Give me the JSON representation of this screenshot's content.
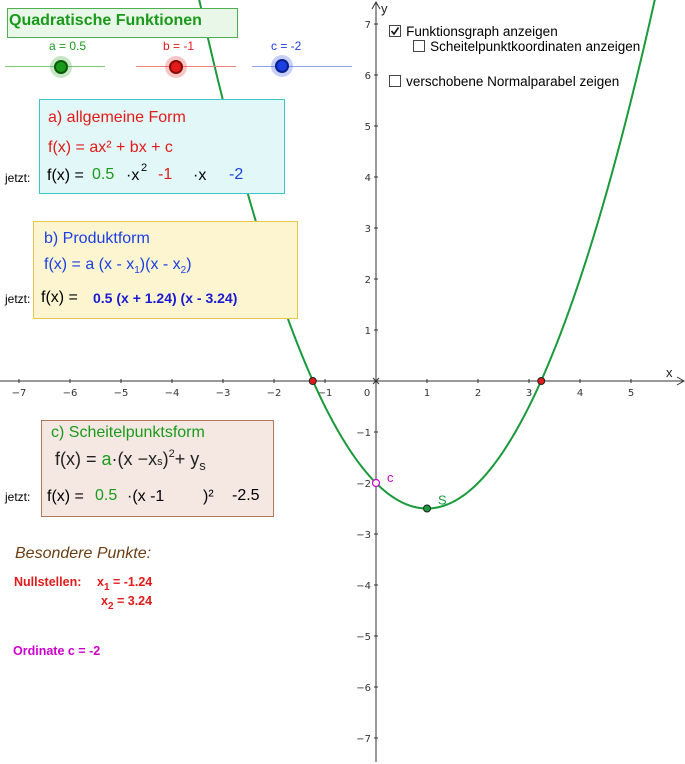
{
  "title": "Quadratische Funktionen",
  "sliders": {
    "a": {
      "label": "a = 0.5",
      "value": 0.5,
      "color": "#1a9a1a"
    },
    "b": {
      "label": "b = -1",
      "value": -1,
      "color": "#e31a1a"
    },
    "c": {
      "label": "c = -2",
      "value": -2,
      "color": "#1a3fe3"
    }
  },
  "checkboxes": [
    {
      "label": "Funktionsgraph anzeigen",
      "checked": true
    },
    {
      "label": "Scheitelpunktkoordinaten anzeigen",
      "checked": false
    },
    {
      "label": "verschobene Normalparabel zeigen",
      "checked": false
    }
  ],
  "form_a": {
    "heading": "a)  allgemeine Form",
    "formula": "f(x) = ax² + bx + c",
    "now_label": "jetzt:",
    "f_prefix": "f(x) =",
    "a_val": "0.5",
    "x2_term": "·x",
    "x2_exp": "2",
    "b_val": "-1",
    "x_term": "·x",
    "c_val": "-2"
  },
  "form_b": {
    "heading": "b)  Produktform",
    "formula_prefix": "f(x) = a (x - x",
    "formula_sub1": "1",
    "formula_mid": ")(x - x",
    "formula_sub2": "2",
    "formula_end": ")",
    "now_label": "jetzt:",
    "f_prefix": "f(x) =",
    "value": "0.5 (x + 1.24) (x - 3.24)"
  },
  "form_c": {
    "heading": "c)  Scheitelpunktsform",
    "formula_f": "f(x) =",
    "formula_a": "a",
    "formula_x": "·(x",
    "formula_minus": "−x",
    "formula_s": "s",
    "formula_close": ")",
    "formula_exp": "2",
    "formula_plus": "+",
    "formula_y": "y",
    "formula_ys": "s",
    "now_label": "jetzt:",
    "f_prefix": "f(x) =",
    "a_val": "0.5",
    "mid": "·(x -1",
    "close": ")²",
    "ys_val": "-2.5"
  },
  "special": {
    "heading": "Besondere Punkte:",
    "zeros_label": "Nullstellen:",
    "x1_prefix": "x",
    "x1_sub": "1",
    "x1_value": " = -1.24",
    "x2_prefix": "x",
    "x2_sub": "2",
    "x2_value": " = 3.24",
    "ordinate": "Ordinate  c = -2"
  },
  "graph": {
    "x_axis_label": "x",
    "y_axis_label": "y",
    "x_ticks": [
      -7,
      -6,
      -5,
      -4,
      -3,
      -2,
      -1,
      0,
      1,
      2,
      3,
      4,
      5
    ],
    "y_ticks": [
      7,
      6,
      5,
      4,
      3,
      2,
      1,
      -1,
      -2,
      -3,
      -4,
      -5,
      -6,
      -7
    ],
    "curve_color": "#1a9a3a",
    "root_color": "#e31a1a",
    "ordinate_color": "#cc00cc",
    "vertex_label": "S",
    "ordinate_label": "c",
    "roots": [
      -1.24,
      3.24
    ],
    "vertex": [
      1,
      -2.5
    ],
    "ordinate_point": [
      0,
      -2
    ]
  }
}
